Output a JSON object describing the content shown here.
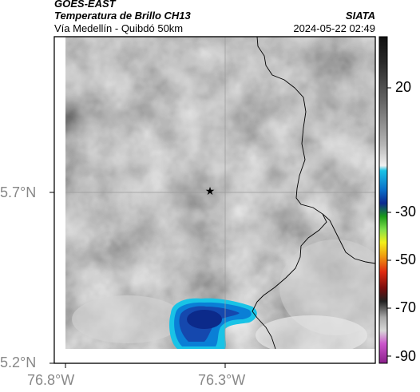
{
  "header": {
    "satellite": "GOES-EAST",
    "product": "Temperatura de Brillo CH13",
    "agency": "SIATA",
    "region": "Vía Medellín - Quibdó 50km",
    "timestamp": "2024-05-22 02:49"
  },
  "map": {
    "lon_ticks": [
      "76.8°W",
      "76.3°W"
    ],
    "lat_ticks": [
      "5.7°N",
      "5.2°N"
    ],
    "marker_icon": "star-icon",
    "colors": {
      "cloud_gray_light": "#c8c8c8",
      "cloud_gray_dark": "#8a8a8a",
      "cold_blue": "#1f4fb3",
      "cold_cyan": "#19c3e6",
      "border": "#000000",
      "gridline": "#b0b0b0"
    }
  },
  "colorbar": {
    "labels": [
      "20",
      "-30",
      "-50",
      "-70",
      "-90"
    ]
  }
}
